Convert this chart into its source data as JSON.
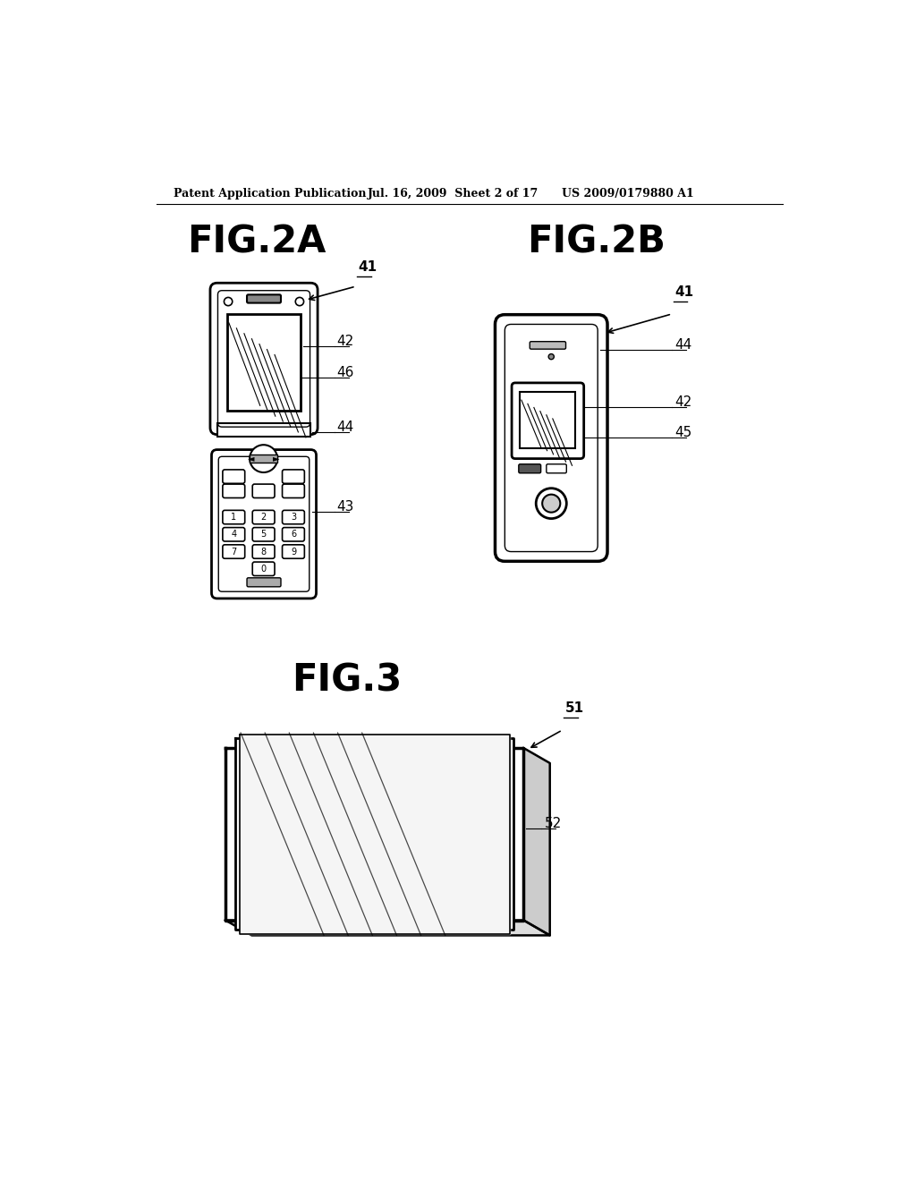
{
  "bg_color": "#ffffff",
  "text_color": "#000000",
  "header_left": "Patent Application Publication",
  "header_mid": "Jul. 16, 2009  Sheet 2 of 17",
  "header_right": "US 2009/0179880 A1",
  "fig2a_title": "FIG.2A",
  "fig2b_title": "FIG.2B",
  "fig3_title": "FIG.3",
  "labels": {
    "41_2a": "41",
    "42_2a": "42",
    "43_2a": "43",
    "44_2a": "44",
    "46_2a": "46",
    "41_2b": "41",
    "42_2b": "42",
    "44_2b": "44",
    "45_2b": "45",
    "51": "51",
    "52": "52"
  }
}
